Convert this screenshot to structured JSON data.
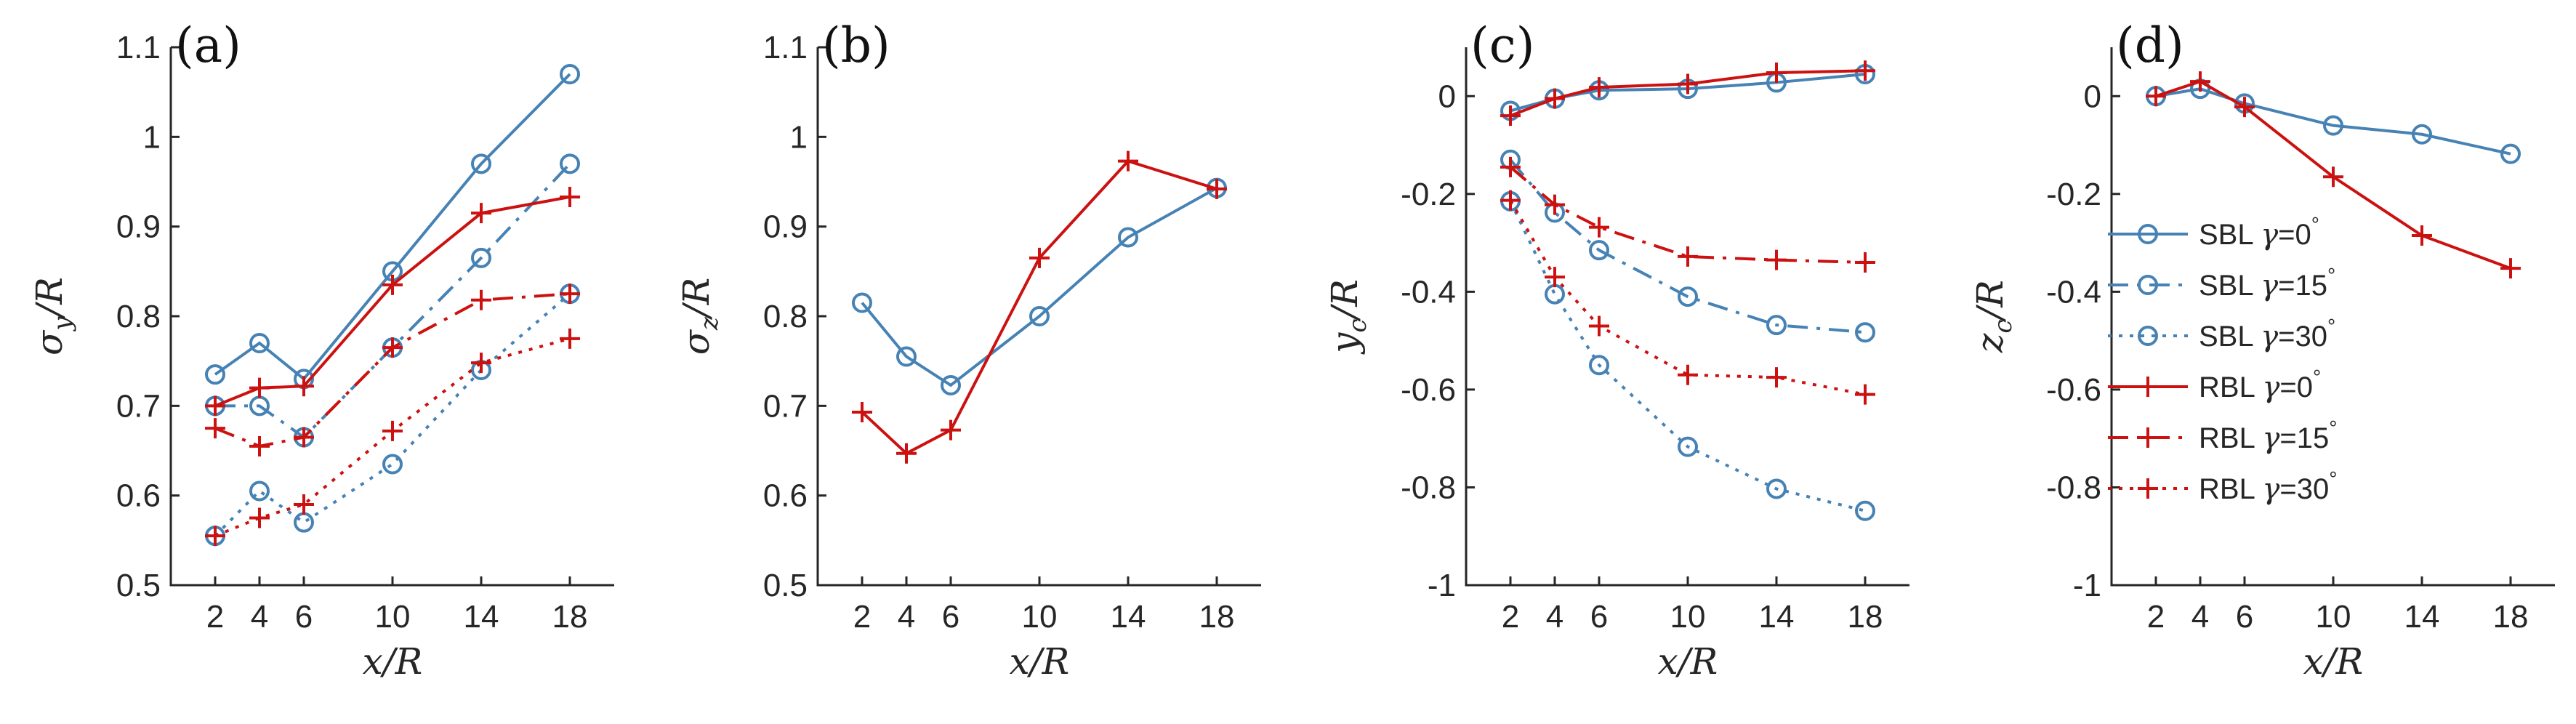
{
  "colors": {
    "sbl": "#4682b4",
    "rbl": "#cc1111",
    "axis": "#262626"
  },
  "x_ticks": [
    2,
    4,
    6,
    10,
    14,
    18
  ],
  "chart_data": [
    {
      "type": "line",
      "panel_label": "(a)",
      "xlabel": "x/R",
      "ylabel_main": "σ",
      "ylabel_sub": "y",
      "ylabel_tail": "/R",
      "xlim": [
        0,
        20
      ],
      "ylim": [
        0.5,
        1.1
      ],
      "yticks": [
        0.5,
        0.6,
        0.7,
        0.8,
        0.9,
        1,
        1.1
      ],
      "ytick_labels": [
        "0.5",
        "0.6",
        "0.7",
        "0.8",
        "0.9",
        "1",
        "1.1"
      ],
      "series": [
        {
          "name": "SBL γ=0°",
          "group": "sbl",
          "style": "solid",
          "marker": "circle",
          "x": [
            2,
            4,
            6,
            10,
            14,
            18
          ],
          "values": [
            0.735,
            0.77,
            0.73,
            0.85,
            0.97,
            1.07
          ]
        },
        {
          "name": "SBL γ=15°",
          "group": "sbl",
          "style": "dashdot",
          "marker": "circle",
          "x": [
            2,
            4,
            6,
            10,
            14,
            18
          ],
          "values": [
            0.7,
            0.7,
            0.665,
            0.765,
            0.865,
            0.97
          ]
        },
        {
          "name": "SBL γ=30°",
          "group": "sbl",
          "style": "dotted",
          "marker": "circle",
          "x": [
            2,
            4,
            6,
            10,
            14,
            18
          ],
          "values": [
            0.555,
            0.605,
            0.57,
            0.635,
            0.74,
            0.825
          ]
        },
        {
          "name": "RBL γ=0°",
          "group": "rbl",
          "style": "solid",
          "marker": "plus",
          "x": [
            2,
            4,
            6,
            10,
            14,
            18
          ],
          "values": [
            0.7,
            0.72,
            0.722,
            0.835,
            0.915,
            0.933
          ]
        },
        {
          "name": "RBL γ=15°",
          "group": "rbl",
          "style": "dashdot",
          "marker": "plus",
          "x": [
            2,
            4,
            6,
            10,
            14,
            18
          ],
          "values": [
            0.675,
            0.655,
            0.665,
            0.765,
            0.818,
            0.825
          ]
        },
        {
          "name": "RBL γ=30°",
          "group": "rbl",
          "style": "dotted",
          "marker": "plus",
          "x": [
            2,
            4,
            6,
            10,
            14,
            18
          ],
          "values": [
            0.555,
            0.575,
            0.59,
            0.672,
            0.748,
            0.775
          ]
        }
      ]
    },
    {
      "type": "line",
      "panel_label": "(b)",
      "xlabel": "x/R",
      "ylabel_main": "σ",
      "ylabel_sub": "z",
      "ylabel_tail": "/R",
      "xlim": [
        0,
        20
      ],
      "ylim": [
        0.5,
        1.1
      ],
      "yticks": [
        0.5,
        0.6,
        0.7,
        0.8,
        0.9,
        1,
        1.1
      ],
      "ytick_labels": [
        "0.5",
        "0.6",
        "0.7",
        "0.8",
        "0.9",
        "1",
        "1.1"
      ],
      "series": [
        {
          "name": "SBL γ=0°",
          "group": "sbl",
          "style": "solid",
          "marker": "circle",
          "x": [
            2,
            4,
            6,
            10,
            14,
            18
          ],
          "values": [
            0.815,
            0.755,
            0.723,
            0.8,
            0.888,
            0.943
          ]
        },
        {
          "name": "RBL γ=0°",
          "group": "rbl",
          "style": "solid",
          "marker": "plus",
          "x": [
            2,
            4,
            6,
            10,
            14,
            18
          ],
          "values": [
            0.693,
            0.647,
            0.673,
            0.865,
            0.973,
            0.942
          ]
        }
      ]
    },
    {
      "type": "line",
      "panel_label": "(c)",
      "xlabel": "x/R",
      "ylabel_main": "y",
      "ylabel_sub": "c",
      "ylabel_tail": "/R",
      "xlim": [
        0,
        20
      ],
      "ylim": [
        -1,
        0.1
      ],
      "yticks": [
        -1,
        -0.8,
        -0.6,
        -0.4,
        -0.2,
        0
      ],
      "ytick_labels": [
        "-1",
        "-0.8",
        "-0.6",
        "-0.4",
        "-0.2",
        "0"
      ],
      "series": [
        {
          "name": "SBL γ=0°",
          "group": "sbl",
          "style": "solid",
          "marker": "circle",
          "x": [
            2,
            4,
            6,
            10,
            14,
            18
          ],
          "values": [
            -0.03,
            -0.005,
            0.012,
            0.015,
            0.028,
            0.045
          ]
        },
        {
          "name": "SBL γ=15°",
          "group": "sbl",
          "style": "dashdot",
          "marker": "circle",
          "x": [
            2,
            4,
            6,
            10,
            14,
            18
          ],
          "values": [
            -0.13,
            -0.238,
            -0.315,
            -0.41,
            -0.468,
            -0.483
          ]
        },
        {
          "name": "SBL γ=30°",
          "group": "sbl",
          "style": "dotted",
          "marker": "circle",
          "x": [
            2,
            4,
            6,
            10,
            14,
            18
          ],
          "values": [
            -0.215,
            -0.405,
            -0.55,
            -0.717,
            -0.803,
            -0.848
          ]
        },
        {
          "name": "RBL γ=0°",
          "group": "rbl",
          "style": "solid",
          "marker": "plus",
          "x": [
            2,
            4,
            6,
            10,
            14,
            18
          ],
          "values": [
            -0.04,
            -0.005,
            0.018,
            0.025,
            0.048,
            0.052
          ]
        },
        {
          "name": "RBL γ=15°",
          "group": "rbl",
          "style": "dashdot",
          "marker": "plus",
          "x": [
            2,
            4,
            6,
            10,
            14,
            18
          ],
          "values": [
            -0.145,
            -0.222,
            -0.268,
            -0.328,
            -0.335,
            -0.34
          ]
        },
        {
          "name": "RBL γ=30°",
          "group": "rbl",
          "style": "dotted",
          "marker": "plus",
          "x": [
            2,
            4,
            6,
            10,
            14,
            18
          ],
          "values": [
            -0.213,
            -0.37,
            -0.47,
            -0.57,
            -0.575,
            -0.61
          ]
        }
      ]
    },
    {
      "type": "line",
      "panel_label": "(d)",
      "xlabel": "x/R",
      "ylabel_main": "z",
      "ylabel_sub": "c",
      "ylabel_tail": "/R",
      "xlim": [
        0,
        20
      ],
      "ylim": [
        -1,
        0.1
      ],
      "yticks": [
        -1,
        -0.8,
        -0.6,
        -0.4,
        -0.2,
        0
      ],
      "ytick_labels": [
        "-1",
        "-0.8",
        "-0.6",
        "-0.4",
        "-0.2",
        "0"
      ],
      "legend": "right-middle",
      "series": [
        {
          "name": "SBL γ=0°",
          "group": "sbl",
          "style": "solid",
          "marker": "circle",
          "x": [
            2,
            4,
            6,
            10,
            14,
            18
          ],
          "values": [
            0.0,
            0.015,
            -0.015,
            -0.06,
            -0.078,
            -0.118
          ]
        },
        {
          "name": "RBL γ=0°",
          "group": "rbl",
          "style": "solid",
          "marker": "plus",
          "x": [
            2,
            4,
            6,
            10,
            14,
            18
          ],
          "values": [
            0.0,
            0.03,
            -0.022,
            -0.165,
            -0.285,
            -0.352
          ]
        }
      ]
    }
  ],
  "legend": {
    "entries": [
      {
        "prefix": "SBL",
        "greek": "γ",
        "value": "=0",
        "degree": "°",
        "group": "sbl",
        "style": "solid",
        "marker": "circle"
      },
      {
        "prefix": "SBL",
        "greek": "γ",
        "value": "=15",
        "degree": "°",
        "group": "sbl",
        "style": "dashdot",
        "marker": "circle"
      },
      {
        "prefix": "SBL",
        "greek": "γ",
        "value": "=30",
        "degree": "°",
        "group": "sbl",
        "style": "dotted",
        "marker": "circle"
      },
      {
        "prefix": "RBL",
        "greek": "γ",
        "value": "=0",
        "degree": "°",
        "group": "rbl",
        "style": "solid",
        "marker": "plus"
      },
      {
        "prefix": "RBL",
        "greek": "γ",
        "value": "=15",
        "degree": "°",
        "group": "rbl",
        "style": "dashdot",
        "marker": "plus"
      },
      {
        "prefix": "RBL",
        "greek": "γ",
        "value": "=30",
        "degree": "°",
        "group": "rbl",
        "style": "dotted",
        "marker": "plus"
      }
    ]
  }
}
